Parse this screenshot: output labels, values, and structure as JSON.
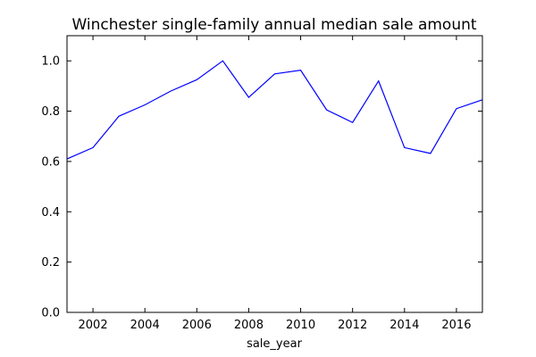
{
  "chart_data": {
    "type": "line",
    "title": "Winchester single-family annual median sale amount",
    "xlabel": "sale_year",
    "ylabel": "",
    "xlim": [
      2001,
      2017
    ],
    "ylim": [
      0.0,
      1.1
    ],
    "x_ticks": [
      2002,
      2004,
      2006,
      2008,
      2010,
      2012,
      2014,
      2016
    ],
    "y_ticks": [
      0.0,
      0.2,
      0.4,
      0.6,
      0.8,
      1.0
    ],
    "y_tick_labels": [
      "0.0",
      "0.2",
      "0.4",
      "0.6",
      "0.8",
      "1.0"
    ],
    "grid": false,
    "legend": "none",
    "series": [
      {
        "color": "#0000ff",
        "x": [
          2001,
          2002,
          2003,
          2004,
          2005,
          2006,
          2007,
          2008,
          2009,
          2010,
          2011,
          2012,
          2013,
          2014,
          2015,
          2016,
          2017
        ],
        "y": [
          0.61,
          0.655,
          0.78,
          0.825,
          0.88,
          0.925,
          1.0,
          0.855,
          0.948,
          0.963,
          0.805,
          0.755,
          0.92,
          0.655,
          0.632,
          0.81,
          0.845
        ]
      }
    ]
  }
}
